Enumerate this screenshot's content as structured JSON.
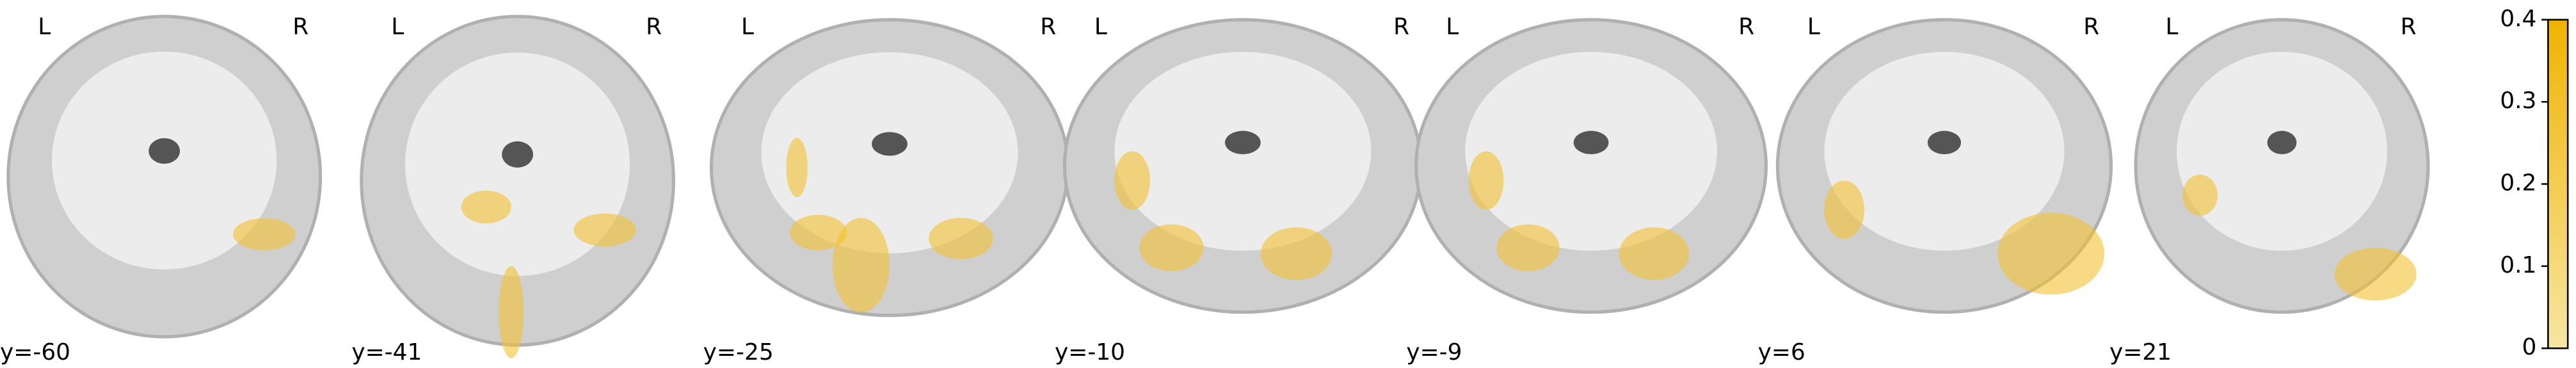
{
  "slices": [
    {
      "left": "L",
      "right": "R",
      "label": "y=-60"
    },
    {
      "left": "L",
      "right": "R",
      "label": "y=-41"
    },
    {
      "left": "L",
      "right": "R",
      "label": "y=-25"
    },
    {
      "left": "L",
      "right": "R",
      "label": "y=-10"
    },
    {
      "left": "L",
      "right": "R",
      "label": "y=-9"
    },
    {
      "left": "L",
      "right": "R",
      "label": "y=6"
    },
    {
      "left": "L",
      "right": "R",
      "label": "y=21"
    }
  ],
  "colorbar": {
    "lim": [
      0,
      0.4
    ],
    "ticks": [
      0,
      0.1,
      0.2,
      0.3,
      0.4
    ],
    "colors": [
      "#f7e6a2",
      "#f0b400"
    ]
  }
}
